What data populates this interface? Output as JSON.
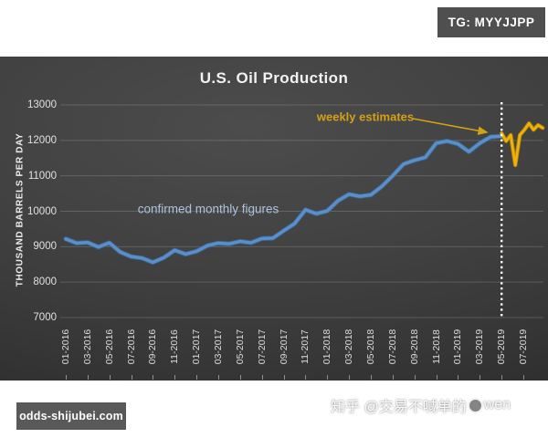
{
  "badges": {
    "telegram": "TG: MYYJJPP",
    "site": "odds-shijubei.com"
  },
  "watermark": {
    "prefix": "知乎 @交易不喊单的",
    "suffix": "wen"
  },
  "chart_data": {
    "type": "line",
    "title": "U.S. Oil Production",
    "ylabel": "THOUSAND BARRELS PER DAY",
    "ylim": [
      7000,
      13000
    ],
    "y_tick_labels": [
      "13000",
      "12000",
      "11000",
      "10000",
      "9000",
      "8000",
      "7000"
    ],
    "x_tick_labels": [
      "01-2016",
      "03-2016",
      "05-2016",
      "07-2016",
      "09-2016",
      "11-2016",
      "01-2017",
      "03-2017",
      "05-2017",
      "07-2017",
      "09-2017",
      "11-2017",
      "01-2018",
      "03-2018",
      "05-2018",
      "07-2018",
      "09-2018",
      "11-2018",
      "01-2019",
      "03-2019",
      "05-2019",
      "07-2019"
    ],
    "grid": "horizontal",
    "panel_background": "#3f3f3f",
    "divider": {
      "month": "05-2019",
      "style": "white-dotted-vertical"
    },
    "series": [
      {
        "name": "confirmed monthly figures",
        "cadence": "monthly",
        "start_month": "01-2016",
        "color": "#5c8fc6",
        "edge_color": "#3a6697",
        "values": [
          9220,
          9100,
          9120,
          8990,
          9110,
          8850,
          8720,
          8680,
          8560,
          8690,
          8900,
          8790,
          8870,
          9030,
          9100,
          9080,
          9150,
          9110,
          9230,
          9240,
          9450,
          9650,
          10040,
          9930,
          10010,
          10300,
          10480,
          10420,
          10460,
          10700,
          11000,
          11330,
          11440,
          11520,
          11920,
          11980,
          11900,
          11680,
          11920,
          12100,
          12120
        ]
      },
      {
        "name": "weekly estimates",
        "cadence": "weekly",
        "start_month": "05-2019",
        "color": "#eeb30a",
        "edge_color": "#b78400",
        "values": [
          12200,
          11980,
          12150,
          11300,
          12150,
          12300,
          12480,
          12300,
          12430,
          12350
        ]
      }
    ],
    "annotations": [
      {
        "text": "confirmed monthly figures",
        "color": "#aec3de"
      },
      {
        "text": "weekly estimates",
        "color": "#d4a017"
      }
    ]
  }
}
